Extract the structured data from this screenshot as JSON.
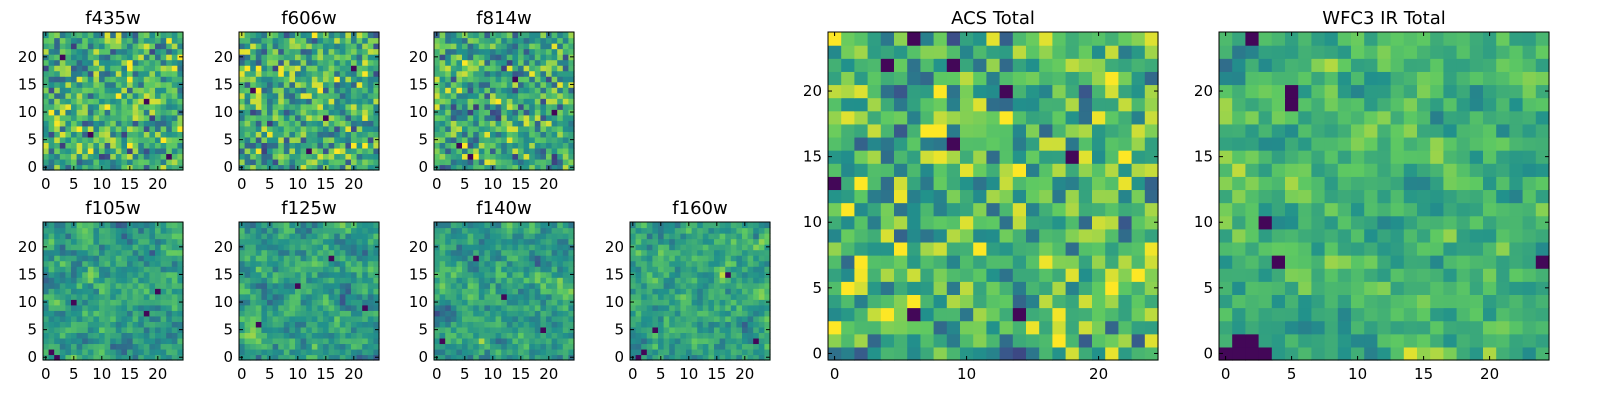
{
  "chart_data": {
    "type": "heatmap",
    "colormap": "viridis",
    "grid_size": 25,
    "colors": {
      "viridis_dark": "#440154",
      "viridis_mid": "#21918c",
      "viridis_bright": "#fde725",
      "axes": "#000000",
      "background": "#ffffff"
    },
    "panels": [
      {
        "title": "f435w",
        "xticks": [
          0,
          5,
          10,
          15,
          20
        ],
        "yticks": [
          0,
          5,
          10,
          15,
          20
        ],
        "seed": 11,
        "smooth": 0,
        "bias": 0.62,
        "dark_spots": [
          [
            3,
            20
          ],
          [
            22,
            2
          ],
          [
            18,
            12
          ],
          [
            8,
            6
          ]
        ]
      },
      {
        "title": "f606w",
        "xticks": [
          0,
          5,
          10,
          15,
          20
        ],
        "yticks": [
          0,
          5,
          10,
          15,
          20
        ],
        "seed": 23,
        "smooth": 0,
        "bias": 0.62,
        "dark_spots": [
          [
            2,
            14
          ],
          [
            20,
            18
          ],
          [
            12,
            3
          ],
          [
            15,
            9
          ]
        ]
      },
      {
        "title": "f814w",
        "xticks": [
          0,
          5,
          10,
          15,
          20
        ],
        "yticks": [
          0,
          5,
          10,
          15,
          20
        ],
        "seed": 37,
        "smooth": 0,
        "bias": 0.6,
        "dark_spots": [
          [
            4,
            4
          ],
          [
            6,
            2
          ],
          [
            14,
            16
          ],
          [
            21,
            10
          ]
        ]
      },
      {
        "title": "f105w",
        "xticks": [
          0,
          5,
          10,
          15,
          20
        ],
        "yticks": [
          0,
          5,
          10,
          15,
          20
        ],
        "seed": 41,
        "smooth": 1,
        "bias": 0.55,
        "dark_spots": [
          [
            1,
            1
          ],
          [
            2,
            0
          ],
          [
            5,
            10
          ],
          [
            18,
            8
          ],
          [
            20,
            12
          ]
        ]
      },
      {
        "title": "f125w",
        "xticks": [
          0,
          5,
          10,
          15,
          20
        ],
        "yticks": [
          0,
          5,
          10,
          15,
          20
        ],
        "seed": 53,
        "smooth": 1,
        "bias": 0.56,
        "dark_spots": [
          [
            3,
            6
          ],
          [
            10,
            13
          ],
          [
            16,
            18
          ],
          [
            22,
            9
          ]
        ]
      },
      {
        "title": "f140w",
        "xticks": [
          0,
          5,
          10,
          15,
          20
        ],
        "yticks": [
          0,
          5,
          10,
          15,
          20
        ],
        "seed": 67,
        "smooth": 1,
        "bias": 0.57,
        "dark_spots": [
          [
            1,
            3
          ],
          [
            12,
            11
          ],
          [
            19,
            5
          ],
          [
            7,
            18
          ]
        ]
      },
      {
        "title": "f160w",
        "xticks": [
          0,
          5,
          10,
          15,
          20
        ],
        "yticks": [
          0,
          5,
          10,
          15,
          20
        ],
        "seed": 79,
        "smooth": 1,
        "bias": 0.58,
        "dark_spots": [
          [
            1,
            0
          ],
          [
            2,
            1
          ],
          [
            4,
            5
          ],
          [
            17,
            15
          ],
          [
            22,
            3
          ]
        ]
      },
      {
        "title": "ACS Total",
        "xticks": [
          0,
          10,
          20
        ],
        "yticks": [
          0,
          5,
          10,
          15,
          20
        ],
        "seed": 97,
        "smooth": 0,
        "bias": 0.66,
        "dark_spots": [
          [
            6,
            24
          ],
          [
            4,
            22
          ],
          [
            9,
            22
          ],
          [
            13,
            20
          ],
          [
            9,
            16
          ],
          [
            18,
            15
          ],
          [
            0,
            13
          ],
          [
            6,
            3
          ],
          [
            14,
            3
          ]
        ]
      },
      {
        "title": "WFC3 IR Total",
        "xticks": [
          0,
          5,
          10,
          15,
          20
        ],
        "yticks": [
          0,
          5,
          10,
          15,
          20
        ],
        "seed": 113,
        "smooth": 1,
        "bias": 0.64,
        "dark_spots": [
          [
            2,
            24
          ],
          [
            5,
            19
          ],
          [
            5,
            20
          ],
          [
            3,
            10
          ],
          [
            4,
            7
          ],
          [
            24,
            7
          ],
          [
            0,
            0
          ],
          [
            1,
            0
          ],
          [
            2,
            0
          ],
          [
            3,
            0
          ],
          [
            1,
            1
          ],
          [
            2,
            1
          ]
        ]
      }
    ]
  }
}
